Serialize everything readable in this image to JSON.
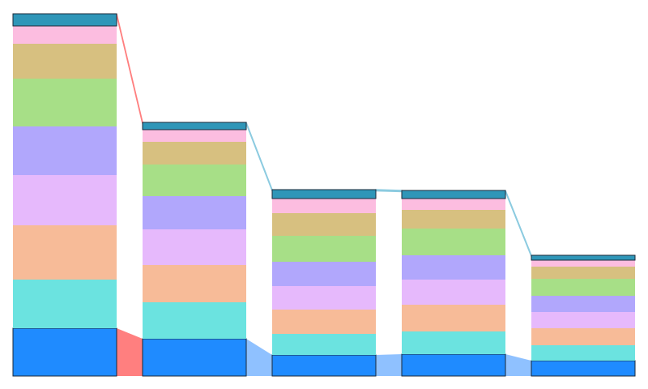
{
  "chart_data": {
    "type": "bar",
    "stacked": true,
    "categories": [
      "",
      "",
      "",
      "",
      ""
    ],
    "ylim": [
      0,
      450
    ],
    "grid": false,
    "legend": "none",
    "series": [
      {
        "color": "#1f8bff",
        "values": [
          59,
          46,
          26,
          27,
          19
        ]
      },
      {
        "color": "#6be3e0",
        "values": [
          60,
          45,
          26,
          28,
          19
        ]
      },
      {
        "color": "#f7bb98",
        "values": [
          67,
          46,
          30,
          33,
          21
        ]
      },
      {
        "color": "#e6b9fc",
        "values": [
          62,
          44,
          29,
          31,
          20
        ]
      },
      {
        "color": "#b1a7fc",
        "values": [
          60,
          41,
          30,
          30,
          20
        ]
      },
      {
        "color": "#a7df87",
        "values": [
          59,
          39,
          32,
          33,
          21
        ]
      },
      {
        "color": "#d7c080",
        "values": [
          43,
          28,
          28,
          23,
          15
        ]
      },
      {
        "color": "#fcbde0",
        "values": [
          22,
          15,
          18,
          14,
          8
        ]
      },
      {
        "color": "#2f96b8",
        "values": [
          15,
          9,
          11,
          10,
          6
        ]
      }
    ],
    "flows": [
      {
        "from_series": 0,
        "color": "#ff7f7f",
        "segments": [
          0
        ]
      },
      {
        "from_series": 0,
        "color": "#8fc1ff",
        "segments": [
          1,
          2,
          3
        ]
      },
      {
        "from_series": 8,
        "color": "#ff7f7f",
        "segments": [
          0
        ]
      },
      {
        "from_series": 8,
        "color": "#8ccbe0",
        "segments": [
          1,
          2,
          3
        ]
      }
    ]
  }
}
